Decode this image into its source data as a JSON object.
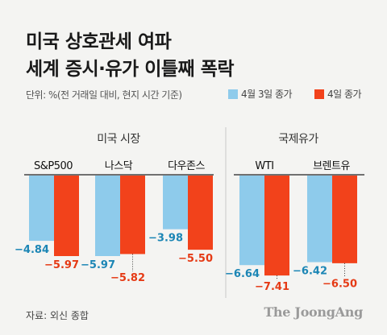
{
  "title_line1": "미국 상호관세 여파",
  "title_line2": "세계 증시·유가 이틀째 폭락",
  "unit_note": "단위: %(전 거래일 대비, 현지 시간 기준)",
  "source": "자료: 외신 종합",
  "brand": "The JoongAng",
  "colors": {
    "apr3": "#8ecbeb",
    "apr4": "#f2421b",
    "apr3_label": "#1c86b5",
    "apr4_label": "#e53a15"
  },
  "chart_data": {
    "type": "bar",
    "groups": [
      {
        "title": "미국 시장",
        "categories": [
          "S&P500",
          "나스닥",
          "다우존스"
        ]
      },
      {
        "title": "국제유가",
        "categories": [
          "WTI",
          "브렌트유"
        ]
      }
    ],
    "categories": [
      "S&P500",
      "나스닥",
      "다우존스",
      "WTI",
      "브렌트유"
    ],
    "series": [
      {
        "name": "4월 3일 종가",
        "values": [
          -4.84,
          -5.97,
          -3.98,
          -6.64,
          -6.42
        ]
      },
      {
        "name": "4일 종가",
        "values": [
          -5.97,
          -5.82,
          -5.5,
          -7.41,
          -6.5
        ]
      }
    ]
  }
}
